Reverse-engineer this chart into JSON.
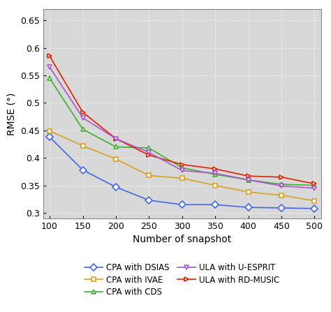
{
  "x": [
    100,
    150,
    200,
    250,
    300,
    350,
    400,
    450,
    500
  ],
  "series": {
    "CPA with DSIAS": [
      0.438,
      0.378,
      0.347,
      0.323,
      0.315,
      0.315,
      0.31,
      0.309,
      0.308
    ],
    "CPA with CDS": [
      0.545,
      0.452,
      0.42,
      0.418,
      0.382,
      0.37,
      0.36,
      0.352,
      0.35
    ],
    "ULA with RD-MUSIC": [
      0.585,
      0.483,
      0.435,
      0.405,
      0.388,
      0.38,
      0.367,
      0.365,
      0.353
    ],
    "CPA with IVAE": [
      0.449,
      0.422,
      0.398,
      0.368,
      0.363,
      0.35,
      0.338,
      0.332,
      0.322
    ],
    "ULA with U-ESPRIT": [
      0.565,
      0.473,
      0.435,
      0.41,
      0.377,
      0.372,
      0.36,
      0.349,
      0.345
    ]
  },
  "colors": {
    "CPA with DSIAS": "#4169E1",
    "CPA with CDS": "#3CB030",
    "ULA with RD-MUSIC": "#DD2200",
    "CPA with IVAE": "#DAA020",
    "ULA with U-ESPRIT": "#AA55CC"
  },
  "markers": {
    "CPA with DSIAS": "D",
    "CPA with CDS": "^",
    "ULA with RD-MUSIC": ">",
    "CPA with IVAE": "s",
    "ULA with U-ESPRIT": "v"
  },
  "plot_order": [
    "CPA with DSIAS",
    "CPA with CDS",
    "ULA with RD-MUSIC",
    "CPA with IVAE",
    "ULA with U-ESPRIT"
  ],
  "legend_col1": [
    "CPA with DSIAS",
    "CPA with CDS",
    "ULA with RD-MUSIC"
  ],
  "legend_col2": [
    "CPA with IVAE",
    "ULA with U-ESPRIT"
  ],
  "xlabel": "Number of snapshot",
  "ylabel": "RMSE (°)",
  "xlim": [
    90,
    510
  ],
  "ylim": [
    0.29,
    0.67
  ],
  "xticks": [
    100,
    150,
    200,
    250,
    300,
    350,
    400,
    450,
    500
  ],
  "yticks": [
    0.3,
    0.35,
    0.4,
    0.45,
    0.5,
    0.55,
    0.6,
    0.65
  ],
  "ytick_labels": [
    "0.3",
    "0.35",
    "0.4",
    "0.45",
    "0.5",
    "0.55",
    "0.6",
    "0.65"
  ],
  "background_color": "#d8d8d8",
  "grid_color": "#ffffff",
  "markersize": 5,
  "linewidth": 1.2
}
